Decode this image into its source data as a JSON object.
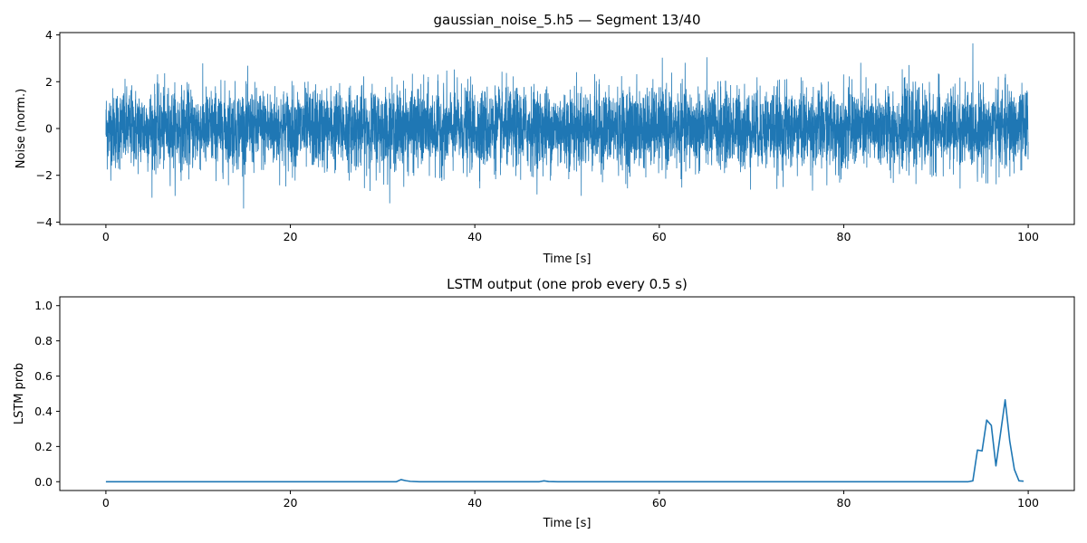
{
  "chart_data": [
    {
      "type": "line",
      "title": "gaussian_noise_5.h5 — Segment 13/40",
      "xlabel": "Time [s]",
      "ylabel": "Noise (norm.)",
      "xlim": [
        -5,
        105
      ],
      "ylim": [
        -4.1,
        4.1
      ],
      "xticks": [
        0,
        20,
        40,
        60,
        80,
        100
      ],
      "yticks": [
        -4,
        -2,
        0,
        2,
        4
      ],
      "grid": false,
      "series": [
        {
          "description_values": "dense gaussian noise sampled over 0–100 s, std ≈ 0.85, occasional peaks",
          "x_range": [
            0,
            100
          ],
          "mean": 0,
          "std": 0.85,
          "max": 3.68,
          "min": -3.68,
          "color": "#1f77b4"
        }
      ]
    },
    {
      "type": "line",
      "title": "LSTM output (one prob every 0.5 s)",
      "xlabel": "Time [s]",
      "ylabel": "LSTM prob",
      "xlim": [
        -5,
        105
      ],
      "ylim": [
        -0.05,
        1.05
      ],
      "xticks": [
        0,
        20,
        40,
        60,
        80,
        100
      ],
      "yticks": [
        0.0,
        0.2,
        0.4,
        0.6,
        0.8,
        1.0
      ],
      "grid": false,
      "series": [
        {
          "color": "#1f77b4",
          "x": [
            0,
            31.5,
            32,
            32.5,
            33,
            34,
            47,
            47.5,
            48,
            49,
            93.5,
            94,
            94.5,
            95,
            95.5,
            96,
            96.5,
            97,
            97.5,
            98,
            98.5,
            99,
            99.5
          ],
          "y": [
            0,
            0,
            0.012,
            0.006,
            0.002,
            0,
            0,
            0.005,
            0.001,
            0,
            0,
            0.005,
            0.18,
            0.175,
            0.35,
            0.32,
            0.09,
            0.275,
            0.465,
            0.23,
            0.07,
            0.005,
            0.003
          ]
        }
      ]
    }
  ]
}
